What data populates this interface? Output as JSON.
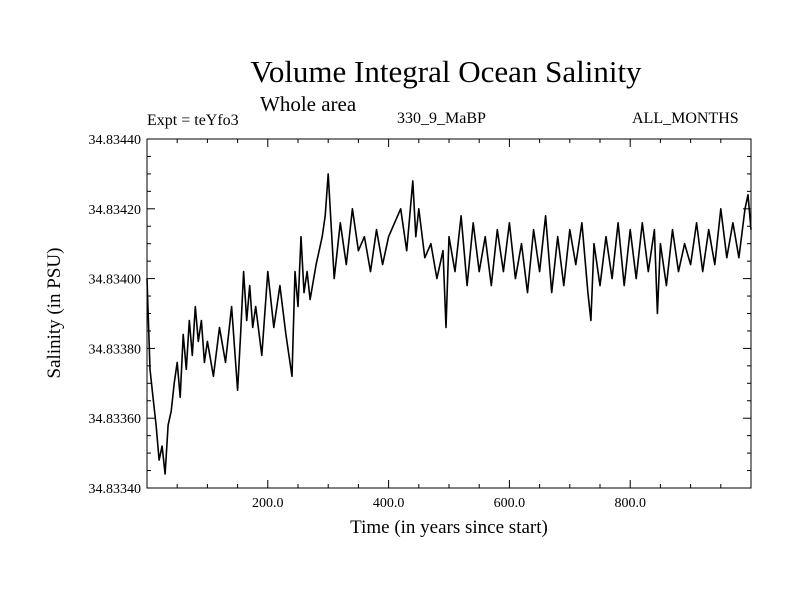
{
  "chart_data": {
    "type": "line",
    "title": "Volume Integral Ocean Salinity",
    "subtitle": "Whole area",
    "left_label": "Expt = teYfo3",
    "center_label": "330_9_MaBP",
    "right_label": "ALL_MONTHS",
    "xlabel": "Time (in years since start)",
    "ylabel": "Salinity (in PSU)",
    "xlim": [
      0,
      1000
    ],
    "ylim": [
      34.8334,
      34.8344
    ],
    "x_ticks": [
      200,
      400,
      600,
      800
    ],
    "x_tick_labels": [
      "200.0",
      "400.0",
      "600.0",
      "800.0"
    ],
    "y_ticks": [
      34.8334,
      34.8336,
      34.8338,
      34.834,
      34.8342,
      34.8344
    ],
    "y_tick_labels": [
      "34.83340",
      "34.83360",
      "34.83380",
      "34.83400",
      "34.83420",
      "34.83440"
    ],
    "grid": false,
    "series": [
      {
        "name": "Salinity",
        "x": [
          0,
          5,
          10,
          15,
          20,
          25,
          30,
          35,
          40,
          45,
          50,
          55,
          60,
          65,
          70,
          75,
          80,
          85,
          90,
          95,
          100,
          110,
          120,
          130,
          140,
          150,
          155,
          160,
          165,
          170,
          175,
          180,
          190,
          200,
          210,
          220,
          230,
          240,
          245,
          250,
          255,
          260,
          265,
          270,
          280,
          290,
          295,
          300,
          310,
          320,
          330,
          340,
          350,
          360,
          370,
          380,
          390,
          400,
          410,
          420,
          430,
          440,
          445,
          450,
          460,
          470,
          480,
          490,
          495,
          500,
          510,
          520,
          530,
          540,
          550,
          560,
          570,
          580,
          590,
          600,
          610,
          620,
          630,
          640,
          650,
          660,
          670,
          680,
          690,
          700,
          710,
          720,
          730,
          735,
          740,
          750,
          760,
          770,
          780,
          790,
          800,
          810,
          820,
          830,
          840,
          845,
          850,
          860,
          870,
          880,
          890,
          900,
          910,
          920,
          930,
          940,
          950,
          960,
          970,
          980,
          990,
          995,
          1000
        ],
        "y": [
          34.834,
          34.83374,
          34.83366,
          34.83358,
          34.83348,
          34.83352,
          34.83344,
          34.83358,
          34.83362,
          34.8337,
          34.83376,
          34.83366,
          34.83384,
          34.83374,
          34.83388,
          34.83378,
          34.83392,
          34.83382,
          34.83388,
          34.83376,
          34.83382,
          34.83372,
          34.83386,
          34.83376,
          34.83392,
          34.83368,
          34.83384,
          34.83402,
          34.83388,
          34.83398,
          34.83386,
          34.83392,
          34.83378,
          34.83402,
          34.83386,
          34.83398,
          34.83384,
          34.83372,
          34.83402,
          34.83392,
          34.83412,
          34.83396,
          34.83402,
          34.83394,
          34.83404,
          34.83412,
          34.83418,
          34.8343,
          34.834,
          34.83416,
          34.83404,
          34.8342,
          34.83408,
          34.83412,
          34.83402,
          34.83414,
          34.83404,
          34.83412,
          34.83416,
          34.8342,
          34.83408,
          34.83428,
          34.83412,
          34.8342,
          34.83406,
          34.8341,
          34.834,
          34.83408,
          34.83386,
          34.83412,
          34.83402,
          34.83418,
          34.83398,
          34.83416,
          34.83402,
          34.83412,
          34.83398,
          34.83414,
          34.83402,
          34.83416,
          34.834,
          34.8341,
          34.83396,
          34.83414,
          34.83402,
          34.83418,
          34.83396,
          34.83412,
          34.83398,
          34.83414,
          34.83404,
          34.83416,
          34.83396,
          34.83388,
          34.8341,
          34.83398,
          34.83412,
          34.834,
          34.83416,
          34.83398,
          34.83414,
          34.834,
          34.83416,
          34.83402,
          34.83414,
          34.8339,
          34.8341,
          34.83398,
          34.83414,
          34.83402,
          34.8341,
          34.83404,
          34.83416,
          34.83402,
          34.83414,
          34.83404,
          34.8342,
          34.83406,
          34.83416,
          34.83406,
          34.8342,
          34.83424,
          34.83414
        ]
      }
    ]
  }
}
